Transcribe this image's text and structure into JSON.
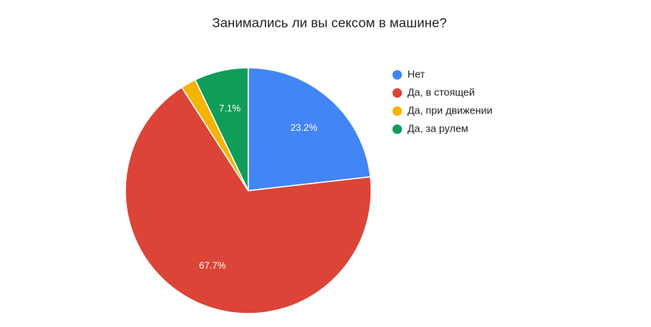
{
  "chart_data": {
    "type": "pie",
    "title": "Занимались ли вы сексом в машине?",
    "categories": [
      "Нет",
      "Да, в стоящей",
      "Да, при движении",
      "Да, за рулем"
    ],
    "values": [
      23.2,
      67.7,
      2.0,
      7.1
    ],
    "value_labels": [
      "23.2%",
      "67.7%",
      null,
      "7.1%"
    ],
    "colors": [
      "#4285f4",
      "#db4437",
      "#f4b400",
      "#0f9d58"
    ],
    "legend": "right"
  }
}
